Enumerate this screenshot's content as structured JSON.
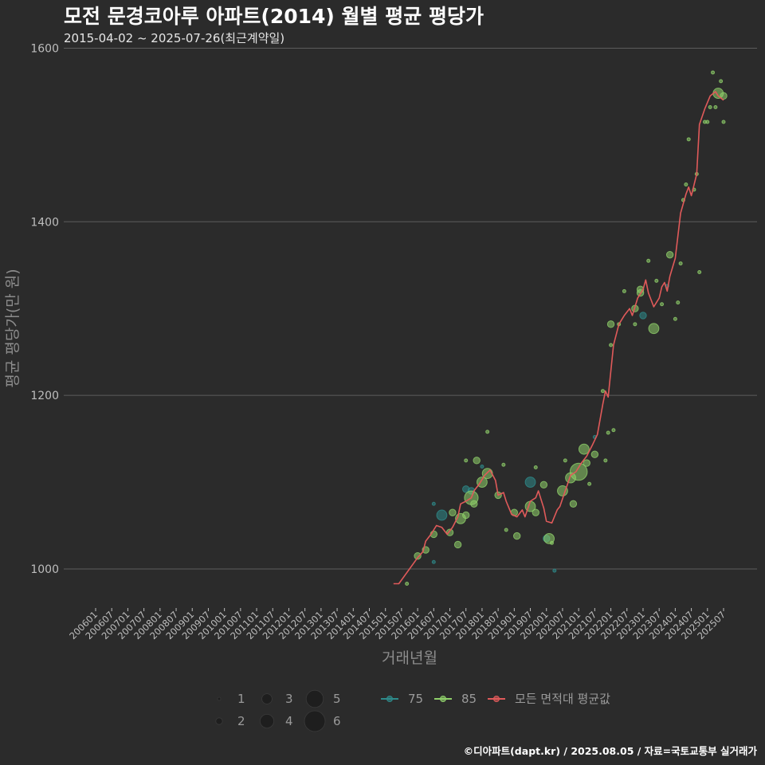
{
  "chart_data": {
    "type": "scatter",
    "title": "모전 문경코아루 아파트(2014) 월별 평균 평당가",
    "subtitle": "2015-04-02 ~ 2025-07-26(최근계약일)",
    "xlabel": "거래년월",
    "ylabel": "평균 평당가(만 원)",
    "ylim": [
      955,
      1605
    ],
    "y_ticks": [
      1000,
      1200,
      1400,
      1600
    ],
    "x_ticks": [
      "200601",
      "200607",
      "200701",
      "200707",
      "200801",
      "200807",
      "200901",
      "200907",
      "201001",
      "201007",
      "201101",
      "201107",
      "201201",
      "201207",
      "201301",
      "201307",
      "201401",
      "201407",
      "201501",
      "201507",
      "201601",
      "201607",
      "201701",
      "201707",
      "201801",
      "201807",
      "201901",
      "201907",
      "202001",
      "202007",
      "202101",
      "202107",
      "202201",
      "202207",
      "202301",
      "202307",
      "202401",
      "202407",
      "202501",
      "202507"
    ],
    "x_range": [
      "2006-01",
      "2025-07"
    ],
    "size_legend": {
      "values": [
        1,
        2,
        3,
        4,
        5,
        6
      ],
      "labels": [
        "1",
        "2",
        "3",
        "4",
        "5",
        "6"
      ]
    },
    "legend": [
      {
        "name": "75",
        "color": "#2e8b8b"
      },
      {
        "name": "85",
        "color": "#8fcf6a"
      },
      {
        "name": "모든 면적대 평균값",
        "color": "#e05a5a"
      }
    ],
    "series": [
      {
        "name": "75",
        "color": "#2e8b8b",
        "points": [
          {
            "x": "2016-07",
            "y": 1008,
            "n": 1
          },
          {
            "x": "2016-07",
            "y": 1075,
            "n": 1
          },
          {
            "x": "2016-10",
            "y": 1062,
            "n": 3
          },
          {
            "x": "2017-07",
            "y": 1092,
            "n": 2
          },
          {
            "x": "2017-09",
            "y": 1090,
            "n": 2
          },
          {
            "x": "2018-01",
            "y": 1118,
            "n": 1
          },
          {
            "x": "2019-07",
            "y": 1100,
            "n": 3
          },
          {
            "x": "2020-01",
            "y": 1035,
            "n": 2
          },
          {
            "x": "2020-04",
            "y": 998,
            "n": 1
          },
          {
            "x": "2021-07",
            "y": 1152,
            "n": 1
          },
          {
            "x": "2023-01",
            "y": 1292,
            "n": 2
          },
          {
            "x": "2023-10",
            "y": 1326,
            "n": 1
          }
        ]
      },
      {
        "name": "85",
        "color": "#8fcf6a",
        "points": [
          {
            "x": "2015-09",
            "y": 983,
            "n": 1
          },
          {
            "x": "2016-01",
            "y": 1015,
            "n": 2
          },
          {
            "x": "2016-04",
            "y": 1022,
            "n": 2
          },
          {
            "x": "2016-07",
            "y": 1040,
            "n": 2
          },
          {
            "x": "2017-01",
            "y": 1042,
            "n": 2
          },
          {
            "x": "2017-02",
            "y": 1065,
            "n": 2
          },
          {
            "x": "2017-04",
            "y": 1028,
            "n": 2
          },
          {
            "x": "2017-05",
            "y": 1058,
            "n": 3
          },
          {
            "x": "2017-07",
            "y": 1062,
            "n": 2
          },
          {
            "x": "2017-07",
            "y": 1125,
            "n": 1
          },
          {
            "x": "2017-09",
            "y": 1082,
            "n": 4
          },
          {
            "x": "2017-10",
            "y": 1075,
            "n": 2
          },
          {
            "x": "2017-11",
            "y": 1125,
            "n": 2
          },
          {
            "x": "2018-01",
            "y": 1100,
            "n": 3
          },
          {
            "x": "2018-03",
            "y": 1110,
            "n": 3
          },
          {
            "x": "2018-03",
            "y": 1158,
            "n": 1
          },
          {
            "x": "2018-07",
            "y": 1085,
            "n": 2
          },
          {
            "x": "2018-09",
            "y": 1120,
            "n": 1
          },
          {
            "x": "2018-10",
            "y": 1045,
            "n": 1
          },
          {
            "x": "2019-01",
            "y": 1065,
            "n": 2
          },
          {
            "x": "2019-02",
            "y": 1038,
            "n": 2
          },
          {
            "x": "2019-07",
            "y": 1072,
            "n": 3
          },
          {
            "x": "2019-09",
            "y": 1065,
            "n": 2
          },
          {
            "x": "2019-09",
            "y": 1117,
            "n": 1
          },
          {
            "x": "2019-12",
            "y": 1097,
            "n": 2
          },
          {
            "x": "2020-02",
            "y": 1035,
            "n": 3
          },
          {
            "x": "2020-03",
            "y": 1030,
            "n": 1
          },
          {
            "x": "2020-07",
            "y": 1090,
            "n": 3
          },
          {
            "x": "2020-08",
            "y": 1125,
            "n": 1
          },
          {
            "x": "2020-10",
            "y": 1105,
            "n": 3
          },
          {
            "x": "2020-11",
            "y": 1075,
            "n": 2
          },
          {
            "x": "2021-01",
            "y": 1112,
            "n": 5
          },
          {
            "x": "2021-03",
            "y": 1138,
            "n": 3
          },
          {
            "x": "2021-04",
            "y": 1122,
            "n": 2
          },
          {
            "x": "2021-05",
            "y": 1098,
            "n": 1
          },
          {
            "x": "2021-07",
            "y": 1132,
            "n": 2
          },
          {
            "x": "2021-10",
            "y": 1205,
            "n": 1
          },
          {
            "x": "2021-11",
            "y": 1125,
            "n": 1
          },
          {
            "x": "2021-12",
            "y": 1157,
            "n": 1
          },
          {
            "x": "2022-01",
            "y": 1258,
            "n": 1
          },
          {
            "x": "2022-01",
            "y": 1282,
            "n": 2
          },
          {
            "x": "2022-02",
            "y": 1160,
            "n": 1
          },
          {
            "x": "2022-04",
            "y": 1282,
            "n": 1
          },
          {
            "x": "2022-06",
            "y": 1320,
            "n": 1
          },
          {
            "x": "2022-10",
            "y": 1282,
            "n": 1
          },
          {
            "x": "2022-10",
            "y": 1300,
            "n": 2
          },
          {
            "x": "2022-12",
            "y": 1322,
            "n": 2
          },
          {
            "x": "2022-12",
            "y": 1318,
            "n": 2
          },
          {
            "x": "2023-03",
            "y": 1355,
            "n": 1
          },
          {
            "x": "2023-05",
            "y": 1277,
            "n": 3
          },
          {
            "x": "2023-06",
            "y": 1332,
            "n": 1
          },
          {
            "x": "2023-08",
            "y": 1305,
            "n": 1
          },
          {
            "x": "2023-11",
            "y": 1362,
            "n": 2
          },
          {
            "x": "2024-01",
            "y": 1288,
            "n": 1
          },
          {
            "x": "2024-02",
            "y": 1307,
            "n": 1
          },
          {
            "x": "2024-03",
            "y": 1352,
            "n": 1
          },
          {
            "x": "2024-04",
            "y": 1425,
            "n": 1
          },
          {
            "x": "2024-05",
            "y": 1443,
            "n": 1
          },
          {
            "x": "2024-06",
            "y": 1495,
            "n": 1
          },
          {
            "x": "2024-08",
            "y": 1437,
            "n": 1
          },
          {
            "x": "2024-09",
            "y": 1455,
            "n": 1
          },
          {
            "x": "2024-10",
            "y": 1342,
            "n": 1
          },
          {
            "x": "2024-12",
            "y": 1515,
            "n": 1
          },
          {
            "x": "2025-01",
            "y": 1515,
            "n": 1
          },
          {
            "x": "2025-02",
            "y": 1532,
            "n": 1
          },
          {
            "x": "2025-03",
            "y": 1572,
            "n": 1
          },
          {
            "x": "2025-04",
            "y": 1532,
            "n": 1
          },
          {
            "x": "2025-05",
            "y": 1548,
            "n": 3
          },
          {
            "x": "2025-06",
            "y": 1562,
            "n": 1
          },
          {
            "x": "2025-07",
            "y": 1545,
            "n": 2
          },
          {
            "x": "2025-07",
            "y": 1515,
            "n": 1
          }
        ]
      }
    ],
    "avg_line": {
      "name": "모든 면적대 평균값",
      "color": "#e05a5a",
      "points": [
        {
          "x": "2015-04",
          "y": 983
        },
        {
          "x": "2015-06",
          "y": 983
        },
        {
          "x": "2016-01",
          "y": 1013
        },
        {
          "x": "2016-03",
          "y": 1020
        },
        {
          "x": "2016-04",
          "y": 1032
        },
        {
          "x": "2016-06",
          "y": 1040
        },
        {
          "x": "2016-08",
          "y": 1050
        },
        {
          "x": "2016-10",
          "y": 1048
        },
        {
          "x": "2016-12",
          "y": 1040
        },
        {
          "x": "2017-02",
          "y": 1048
        },
        {
          "x": "2017-04",
          "y": 1060
        },
        {
          "x": "2017-05",
          "y": 1075
        },
        {
          "x": "2017-07",
          "y": 1078
        },
        {
          "x": "2017-09",
          "y": 1082
        },
        {
          "x": "2017-10",
          "y": 1090
        },
        {
          "x": "2017-12",
          "y": 1098
        },
        {
          "x": "2018-02",
          "y": 1108
        },
        {
          "x": "2018-04",
          "y": 1114
        },
        {
          "x": "2018-06",
          "y": 1102
        },
        {
          "x": "2018-07",
          "y": 1085
        },
        {
          "x": "2018-09",
          "y": 1088
        },
        {
          "x": "2018-10",
          "y": 1078
        },
        {
          "x": "2018-12",
          "y": 1063
        },
        {
          "x": "2019-02",
          "y": 1060
        },
        {
          "x": "2019-04",
          "y": 1068
        },
        {
          "x": "2019-05",
          "y": 1060
        },
        {
          "x": "2019-07",
          "y": 1078
        },
        {
          "x": "2019-09",
          "y": 1082
        },
        {
          "x": "2019-10",
          "y": 1090
        },
        {
          "x": "2019-12",
          "y": 1070
        },
        {
          "x": "2020-01",
          "y": 1055
        },
        {
          "x": "2020-03",
          "y": 1053
        },
        {
          "x": "2020-05",
          "y": 1068
        },
        {
          "x": "2020-06",
          "y": 1072
        },
        {
          "x": "2020-08",
          "y": 1090
        },
        {
          "x": "2020-10",
          "y": 1108
        },
        {
          "x": "2020-12",
          "y": 1112
        },
        {
          "x": "2021-02",
          "y": 1122
        },
        {
          "x": "2021-04",
          "y": 1130
        },
        {
          "x": "2021-06",
          "y": 1142
        },
        {
          "x": "2021-08",
          "y": 1155
        },
        {
          "x": "2021-10",
          "y": 1190
        },
        {
          "x": "2021-11",
          "y": 1205
        },
        {
          "x": "2021-12",
          "y": 1198
        },
        {
          "x": "2022-02",
          "y": 1258
        },
        {
          "x": "2022-04",
          "y": 1282
        },
        {
          "x": "2022-06",
          "y": 1292
        },
        {
          "x": "2022-08",
          "y": 1300
        },
        {
          "x": "2022-09",
          "y": 1292
        },
        {
          "x": "2022-11",
          "y": 1312
        },
        {
          "x": "2023-01",
          "y": 1322
        },
        {
          "x": "2023-02",
          "y": 1333
        },
        {
          "x": "2023-03",
          "y": 1318
        },
        {
          "x": "2023-05",
          "y": 1302
        },
        {
          "x": "2023-07",
          "y": 1312
        },
        {
          "x": "2023-08",
          "y": 1325
        },
        {
          "x": "2023-09",
          "y": 1330
        },
        {
          "x": "2023-10",
          "y": 1320
        },
        {
          "x": "2023-11",
          "y": 1337
        },
        {
          "x": "2024-01",
          "y": 1358
        },
        {
          "x": "2024-03",
          "y": 1410
        },
        {
          "x": "2024-05",
          "y": 1432
        },
        {
          "x": "2024-06",
          "y": 1440
        },
        {
          "x": "2024-07",
          "y": 1430
        },
        {
          "x": "2024-09",
          "y": 1455
        },
        {
          "x": "2024-10",
          "y": 1512
        },
        {
          "x": "2024-12",
          "y": 1530
        },
        {
          "x": "2025-02",
          "y": 1545
        },
        {
          "x": "2025-04",
          "y": 1550
        },
        {
          "x": "2025-05",
          "y": 1545
        },
        {
          "x": "2025-07",
          "y": 1540
        }
      ]
    },
    "caption": "©디아파트(dapt.kr) / 2025.08.05 / 자료=국토교통부 실거래가"
  }
}
